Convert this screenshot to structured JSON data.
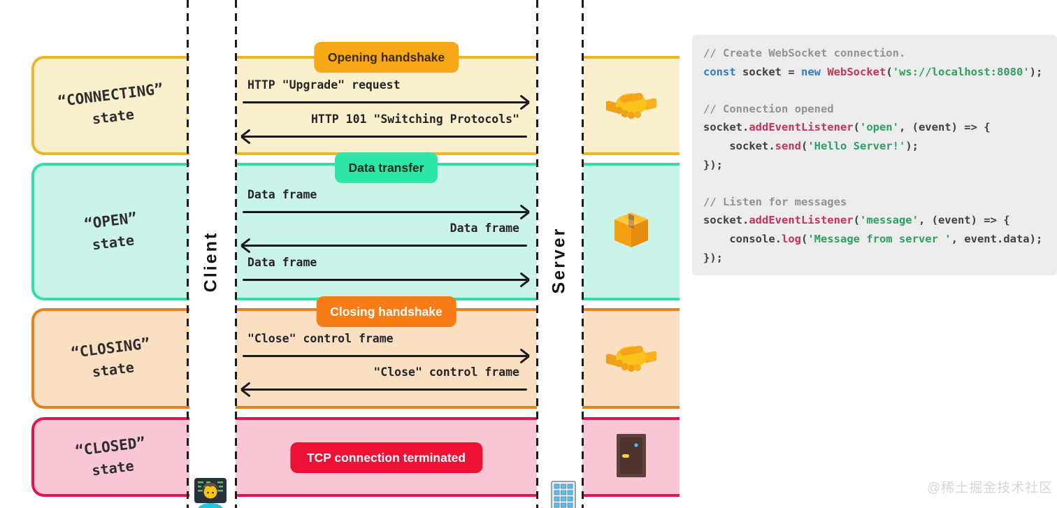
{
  "diagram": {
    "client_label": "Client",
    "server_label": "Server",
    "client_icon": "technologist-icon",
    "server_icon": "office-building-icon",
    "rows": [
      {
        "state": "“CONNECTING”",
        "state_sub": "state",
        "badge": "Opening handshake",
        "icon": "handshake-icon",
        "messages": [
          {
            "text": "HTTP \"Upgrade\" request",
            "direction": "right"
          },
          {
            "text": "HTTP 101 \"Switching Protocols\"",
            "direction": "left"
          }
        ]
      },
      {
        "state": "“OPEN”",
        "state_sub": "state",
        "badge": "Data transfer",
        "icon": "package-icon",
        "messages": [
          {
            "text": "Data frame",
            "direction": "right"
          },
          {
            "text": "Data frame",
            "direction": "left"
          },
          {
            "text": "Data frame",
            "direction": "right"
          }
        ]
      },
      {
        "state": "“CLOSING”",
        "state_sub": "state",
        "badge": "Closing handshake",
        "icon": "handshake-icon",
        "messages": [
          {
            "text": "\"Close\" control frame",
            "direction": "right"
          },
          {
            "text": "\"Close\" control frame",
            "direction": "left"
          }
        ]
      },
      {
        "state": "“CLOSED”",
        "state_sub": "state",
        "badge": "TCP connection terminated",
        "icon": "door-icon",
        "messages": []
      }
    ]
  },
  "colors": {
    "connecting_border": "#f0b429",
    "connecting_fill": "#fbf0cd",
    "connecting_badge": "#f6a817",
    "open_border": "#2fe0a6",
    "open_fill": "#caf4e8",
    "open_badge": "#2ee6a7",
    "closing_border": "#e8801f",
    "closing_fill": "#fbdfc2",
    "closing_badge": "#f57c17",
    "closed_border": "#e4134f",
    "closed_fill": "#f9c6d6",
    "closed_badge": "#ee1136",
    "arrow": "#191919",
    "code_bg": "#ececec",
    "code_keyword": "#2f7bc3",
    "code_function": "#c2345b",
    "code_string": "#2e9e63",
    "code_comment": "#929292",
    "code_default": "#404040"
  },
  "code_panel": {
    "lines": [
      [
        [
          "c",
          "// Create WebSocket connection."
        ]
      ],
      [
        [
          "k",
          "const"
        ],
        [
          "d",
          " socket = "
        ],
        [
          "k",
          "new"
        ],
        [
          "d",
          " "
        ],
        [
          "f",
          "WebSocket"
        ],
        [
          "d",
          "("
        ],
        [
          "s",
          "'ws://localhost:8080'"
        ],
        [
          "d",
          ");"
        ]
      ],
      [],
      [
        [
          "c",
          "// Connection opened"
        ]
      ],
      [
        [
          "d",
          "socket."
        ],
        [
          "f",
          "addEventListener"
        ],
        [
          "d",
          "("
        ],
        [
          "s",
          "'open'"
        ],
        [
          "d",
          ", (event) => {"
        ]
      ],
      [
        [
          "d",
          "    socket."
        ],
        [
          "f",
          "send"
        ],
        [
          "d",
          "("
        ],
        [
          "s",
          "'Hello Server!'"
        ],
        [
          "d",
          ");"
        ]
      ],
      [
        [
          "d",
          "});"
        ]
      ],
      [],
      [
        [
          "c",
          "// Listen for messages"
        ]
      ],
      [
        [
          "d",
          "socket."
        ],
        [
          "f",
          "addEventListener"
        ],
        [
          "d",
          "("
        ],
        [
          "s",
          "'message'"
        ],
        [
          "d",
          ", (event) => {"
        ]
      ],
      [
        [
          "d",
          "    console."
        ],
        [
          "f",
          "log"
        ],
        [
          "d",
          "("
        ],
        [
          "s",
          "'Message from server '"
        ],
        [
          "d",
          ", event.data);"
        ]
      ],
      [
        [
          "d",
          "});"
        ]
      ]
    ]
  },
  "watermark": "@稀土掘金技术社区"
}
